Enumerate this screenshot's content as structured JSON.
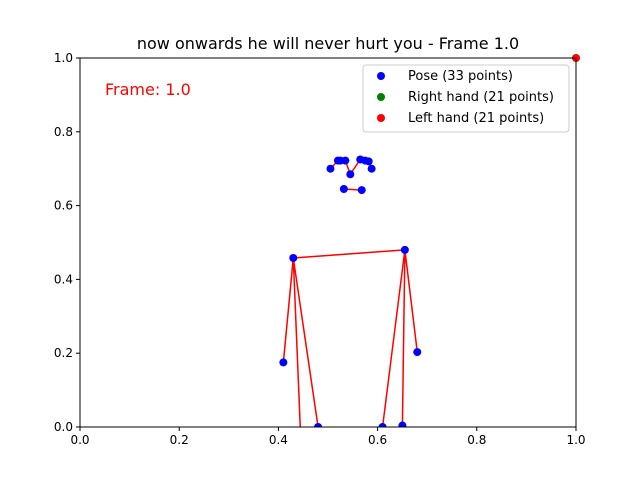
{
  "chart_data": {
    "type": "scatter",
    "title": "now onwards he will never hurt you - Frame 1.0",
    "annotation": "Frame: 1.0",
    "xlabel": "",
    "ylabel": "",
    "xlim": [
      0,
      1
    ],
    "ylim": [
      0,
      1
    ],
    "xticks": [
      "0.0",
      "0.2",
      "0.4",
      "0.6",
      "0.8",
      "1.0"
    ],
    "yticks": [
      "0.0",
      "0.2",
      "0.4",
      "0.6",
      "0.8",
      "1.0"
    ],
    "grid": false,
    "legend_position": "top-right",
    "series": [
      {
        "name": "Pose (33 points)",
        "color": "#0000ff",
        "points": [
          [
            0.545,
            0.685
          ],
          [
            0.535,
            0.722
          ],
          [
            0.525,
            0.722
          ],
          [
            0.52,
            0.722
          ],
          [
            0.565,
            0.725
          ],
          [
            0.575,
            0.722
          ],
          [
            0.582,
            0.72
          ],
          [
            0.505,
            0.7
          ],
          [
            0.588,
            0.7
          ],
          [
            0.532,
            0.645
          ],
          [
            0.568,
            0.642
          ],
          [
            0.43,
            0.458
          ],
          [
            0.655,
            0.48
          ],
          [
            0.41,
            0.175
          ],
          [
            0.68,
            0.203
          ],
          [
            0.445,
            -0.03
          ],
          [
            0.65,
            0.004
          ],
          [
            0.48,
            0.0
          ],
          [
            0.61,
            0.0
          ]
        ]
      },
      {
        "name": "Right hand (21 points)",
        "color": "#008000",
        "points": []
      },
      {
        "name": "Left hand (21 points)",
        "color": "#ff0000",
        "points": [
          [
            1.0,
            1.0
          ]
        ]
      }
    ],
    "connections": {
      "color": "#ff0000",
      "lines": [
        [
          [
            0.545,
            0.685
          ],
          [
            0.535,
            0.722
          ]
        ],
        [
          [
            0.535,
            0.722
          ],
          [
            0.525,
            0.722
          ]
        ],
        [
          [
            0.525,
            0.722
          ],
          [
            0.52,
            0.722
          ]
        ],
        [
          [
            0.52,
            0.722
          ],
          [
            0.505,
            0.7
          ]
        ],
        [
          [
            0.545,
            0.685
          ],
          [
            0.565,
            0.725
          ]
        ],
        [
          [
            0.565,
            0.725
          ],
          [
            0.575,
            0.722
          ]
        ],
        [
          [
            0.575,
            0.722
          ],
          [
            0.582,
            0.72
          ]
        ],
        [
          [
            0.582,
            0.72
          ],
          [
            0.588,
            0.7
          ]
        ],
        [
          [
            0.532,
            0.645
          ],
          [
            0.568,
            0.642
          ]
        ],
        [
          [
            0.43,
            0.458
          ],
          [
            0.655,
            0.48
          ]
        ],
        [
          [
            0.43,
            0.458
          ],
          [
            0.41,
            0.175
          ]
        ],
        [
          [
            0.655,
            0.48
          ],
          [
            0.68,
            0.203
          ]
        ],
        [
          [
            0.43,
            0.458
          ],
          [
            0.445,
            -0.03
          ]
        ],
        [
          [
            0.655,
            0.48
          ],
          [
            0.65,
            0.004
          ]
        ],
        [
          [
            0.43,
            0.458
          ],
          [
            0.48,
            0.0
          ]
        ],
        [
          [
            0.655,
            0.48
          ],
          [
            0.61,
            0.0
          ]
        ]
      ]
    }
  }
}
